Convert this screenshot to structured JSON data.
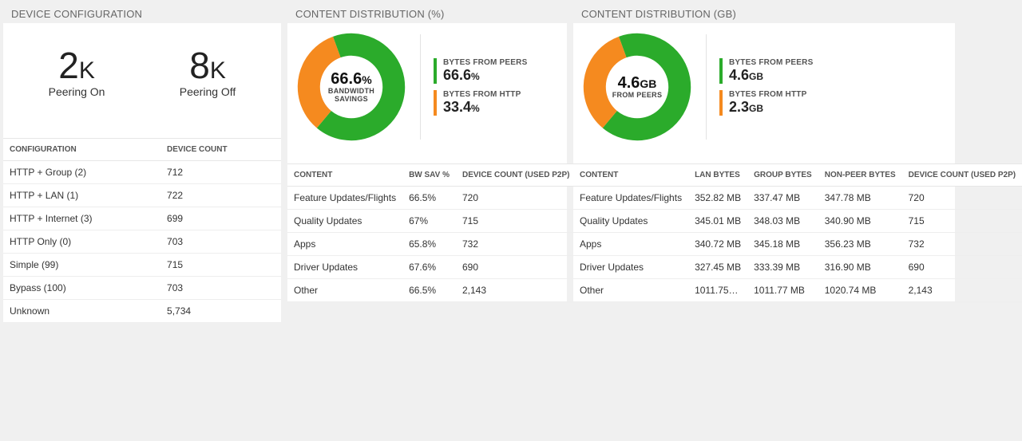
{
  "colors": {
    "green": "#2bab2b",
    "orange": "#f58a1f",
    "grid": "#e6e6e6",
    "text": "#333333",
    "subtext": "#666666",
    "card_bg": "#ffffff",
    "page_bg": "#f0f0f0"
  },
  "deviceConfig": {
    "title": "DEVICE CONFIGURATION",
    "stats": [
      {
        "value": "2",
        "unit": "K",
        "label": "Peering On"
      },
      {
        "value": "8",
        "unit": "K",
        "label": "Peering Off"
      }
    ],
    "table": {
      "columns": [
        "CONFIGURATION",
        "DEVICE COUNT"
      ],
      "rows": [
        [
          "HTTP + Group (2)",
          "712"
        ],
        [
          "HTTP + LAN (1)",
          "722"
        ],
        [
          "HTTP + Internet (3)",
          "699"
        ],
        [
          "HTTP Only (0)",
          "703"
        ],
        [
          "Simple (99)",
          "715"
        ],
        [
          "Bypass (100)",
          "703"
        ],
        [
          "Unknown",
          "5,734"
        ]
      ]
    }
  },
  "distPct": {
    "title": "CONTENT DISTRIBUTION (%)",
    "donut": {
      "center_big": "66.6",
      "center_big_suffix": "%",
      "center_sub": "BANDWIDTH SAVINGS",
      "slices": [
        {
          "value": 66.6,
          "color": "#2bab2b"
        },
        {
          "value": 33.4,
          "color": "#f58a1f"
        }
      ],
      "stroke_width": 20
    },
    "legend": [
      {
        "label": "BYTES FROM PEERS",
        "value": "66.6",
        "suffix": "%",
        "color": "#2bab2b"
      },
      {
        "label": "BYTES FROM HTTP",
        "value": "33.4",
        "suffix": "%",
        "color": "#f58a1f"
      }
    ],
    "table": {
      "columns": [
        "CONTENT",
        "BW SAV %",
        "DEVICE COUNT (USED P2P)"
      ],
      "rows": [
        [
          "Feature Updates/Flights",
          "66.5%",
          "720"
        ],
        [
          "Quality Updates",
          "67%",
          "715"
        ],
        [
          "Apps",
          "65.8%",
          "732"
        ],
        [
          "Driver Updates",
          "67.6%",
          "690"
        ],
        [
          "Other",
          "66.5%",
          "2,143"
        ]
      ]
    }
  },
  "distGb": {
    "title": "CONTENT DISTRIBUTION (GB)",
    "donut": {
      "center_big": "4.6",
      "center_big_suffix": "GB",
      "center_sub": "FROM PEERS",
      "slices": [
        {
          "value": 66.6,
          "color": "#2bab2b"
        },
        {
          "value": 33.4,
          "color": "#f58a1f"
        }
      ],
      "stroke_width": 20
    },
    "legend": [
      {
        "label": "BYTES FROM PEERS",
        "value": "4.6",
        "suffix": "GB",
        "color": "#2bab2b"
      },
      {
        "label": "BYTES FROM HTTP",
        "value": "2.3",
        "suffix": "GB",
        "color": "#f58a1f"
      }
    ],
    "table": {
      "columns": [
        "CONTENT",
        "LAN BYTES",
        "GROUP BYTES",
        "NON-PEER BYTES",
        "DEVICE COUNT (USED P2P)"
      ],
      "rows": [
        [
          "Feature Updates/Flights",
          "352.82 MB",
          "337.47 MB",
          "347.78 MB",
          "720"
        ],
        [
          "Quality Updates",
          "345.01 MB",
          "348.03 MB",
          "340.90 MB",
          "715"
        ],
        [
          "Apps",
          "340.72 MB",
          "345.18 MB",
          "356.23 MB",
          "732"
        ],
        [
          "Driver Updates",
          "327.45 MB",
          "333.39 MB",
          "316.90 MB",
          "690"
        ],
        [
          "Other",
          "1011.75…",
          "1011.77 MB",
          "1020.74 MB",
          "2,143"
        ]
      ]
    }
  }
}
